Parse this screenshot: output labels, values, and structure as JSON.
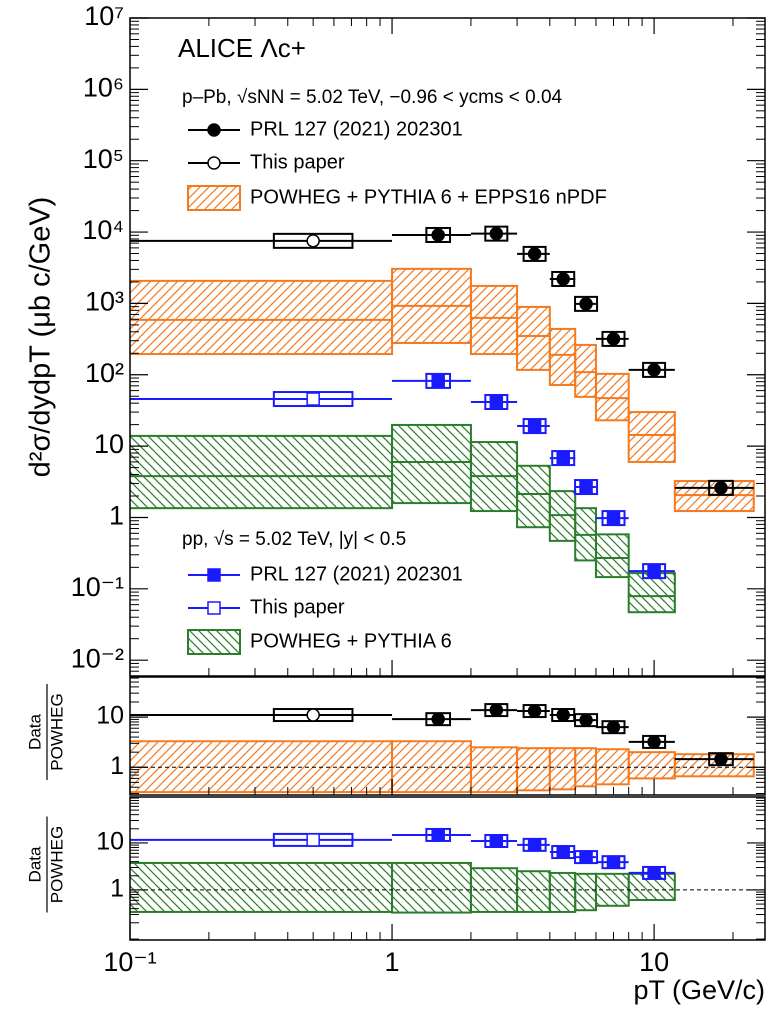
{
  "chart_data": [
    {
      "type": "errorbar",
      "log_x": true,
      "log_y": true,
      "title": "ALICE Λc+",
      "y_label": "d²σ/dydpT (μb c/GeV)",
      "xlim": [
        0.1,
        26.5
      ],
      "ylim": [
        0.006,
        10000000
      ],
      "yticks": [
        {
          "value": 0.01,
          "label": "10⁻²"
        },
        {
          "value": 0.1,
          "label": "10⁻¹"
        },
        1,
        10,
        {
          "value": 100,
          "label": "10²"
        },
        {
          "value": 1000,
          "label": "10³"
        },
        {
          "value": 10000,
          "label": "10⁴"
        },
        {
          "value": 100000,
          "label": "10⁵"
        },
        {
          "value": 1000000,
          "label": "10⁶"
        },
        {
          "value": 10000000,
          "label": "10⁷"
        }
      ],
      "groups": [
        {
          "label": "p–Pb, √sNN = 5.02 TeV, −0.96 < ycms < 0.04",
          "series": [
            {
              "name": "PRL 127 (2021) 202301",
              "color": "#000000",
              "marker": "circle",
              "filled": true,
              "bins": [
                1,
                2,
                3,
                4,
                5,
                6,
                8,
                12,
                24
              ],
              "x": [
                1.5,
                2.5,
                3.5,
                4.5,
                5.5,
                7,
                10,
                18
              ],
              "values": [
                9100,
                9500,
                4940,
                2200,
                985,
                318,
                117,
                2.6
              ]
            },
            {
              "name": "This paper",
              "color": "#000000",
              "marker": "circle",
              "filled": false,
              "bins": [
                0,
                1
              ],
              "x": [
                0.5
              ],
              "values": [
                7530
              ]
            }
          ],
          "band": {
            "name": "POWHEG + PYTHIA 6 + EPPS16 nPDF",
            "color": "#f47a20",
            "hatch": "/",
            "bins": [
              0,
              1,
              2,
              3,
              4,
              5,
              6,
              8,
              12,
              24
            ],
            "low": [
              195,
              279,
              195,
              117,
              72,
              49,
              23,
              6,
              1.23
            ],
            "mid": [
              587,
              923,
              627,
              350,
              190,
              109,
              47,
              14.3,
              2.06
            ],
            "high": [
              2070,
              3050,
              1760,
              893,
              439,
              262,
              103,
              30,
              3.24
            ]
          }
        },
        {
          "label": "pp, √s = 5.02 TeV, |y| < 0.5",
          "series": [
            {
              "name": "PRL 127 (2021) 202301",
              "color": "#1a1aff",
              "marker": "square",
              "filled": true,
              "bins": [
                1,
                2,
                3,
                4,
                5,
                6,
                8,
                12
              ],
              "x": [
                1.5,
                2.5,
                3.5,
                4.5,
                5.5,
                7,
                10
              ],
              "values": [
                82,
                41.5,
                19.1,
                6.8,
                2.67,
                0.98,
                0.177
              ]
            },
            {
              "name": "This paper",
              "color": "#1a1aff",
              "marker": "square",
              "filled": false,
              "bins": [
                0,
                1
              ],
              "x": [
                0.5
              ],
              "values": [
                45.7
              ]
            }
          ],
          "band": {
            "name": "POWHEG + PYTHIA 6",
            "color": "#2a7d2a",
            "hatch": "\\",
            "bins": [
              0,
              1,
              2,
              3,
              4,
              5,
              6,
              8,
              12
            ],
            "low": [
              1.35,
              1.59,
              1.23,
              0.73,
              0.47,
              0.25,
              0.146,
              0.047
            ],
            "mid": [
              3.8,
              6.0,
              3.8,
              2.13,
              1.08,
              0.57,
              0.27,
              0.079
            ],
            "high": [
              13.9,
              19.8,
              11.4,
              5.3,
              2.34,
              1.35,
              0.58,
              0.166
            ]
          }
        }
      ]
    },
    {
      "type": "errorbar",
      "log_x": true,
      "log_y": true,
      "y_label": [
        "Data",
        "POWHEG"
      ],
      "xlim": [
        0.1,
        26.5
      ],
      "ylim": [
        0.28,
        63
      ],
      "yticks": [
        1,
        10
      ],
      "reference_line": 1,
      "series": [
        {
          "color": "#000000",
          "marker": "circle",
          "filled": true,
          "bins": [
            1,
            2,
            3,
            4,
            5,
            6,
            8,
            12,
            24
          ],
          "x": [
            1.5,
            2.5,
            3.5,
            4.5,
            5.5,
            7,
            10,
            18
          ],
          "values": [
            9.1,
            13.8,
            13.2,
            11,
            8.7,
            6.3,
            3.2,
            1.45
          ]
        },
        {
          "color": "#000000",
          "marker": "circle",
          "filled": false,
          "bins": [
            0,
            1
          ],
          "x": [
            0.5
          ],
          "values": [
            11
          ]
        }
      ],
      "band": {
        "color": "#f47a20",
        "hatch": "/",
        "bins": [
          0,
          1,
          2,
          3,
          4,
          5,
          6,
          8,
          12,
          24
        ],
        "low": [
          0.32,
          0.32,
          0.32,
          0.347,
          0.363,
          0.417,
          0.457,
          0.6,
          0.66
        ],
        "high": [
          3.3,
          3.3,
          2.5,
          2.4,
          2.4,
          2.4,
          2.29,
          2.0,
          1.82
        ]
      }
    },
    {
      "type": "errorbar",
      "log_x": true,
      "log_y": true,
      "y_label": [
        "Data",
        "POWHEG"
      ],
      "x_label": "pT (GeV/c)",
      "xlim": [
        0.1,
        26.5
      ],
      "ylim": [
        0.086,
        95
      ],
      "yticks": [
        1,
        10
      ],
      "reference_line": 1,
      "xticks": [
        {
          "value": 0.1,
          "label": "10⁻¹"
        },
        1,
        10
      ],
      "series": [
        {
          "color": "#1a1aff",
          "marker": "square",
          "filled": true,
          "bins": [
            1,
            2,
            3,
            4,
            5,
            6,
            8,
            12
          ],
          "x": [
            1.5,
            2.5,
            3.5,
            4.5,
            5.5,
            7,
            10
          ],
          "values": [
            14.8,
            11.0,
            9.1,
            6.4,
            5.0,
            3.9,
            2.3
          ]
        },
        {
          "color": "#1a1aff",
          "marker": "square",
          "filled": false,
          "bins": [
            0,
            1
          ],
          "x": [
            0.5
          ],
          "values": [
            11.6
          ]
        }
      ],
      "band": {
        "color": "#2a7d2a",
        "hatch": "\\",
        "bins": [
          0,
          1,
          2,
          3,
          4,
          5,
          6,
          8,
          12
        ],
        "low": [
          0.34,
          0.33,
          0.34,
          0.34,
          0.34,
          0.37,
          0.46,
          0.61
        ],
        "high": [
          3.75,
          3.75,
          2.9,
          2.5,
          2.3,
          2.2,
          2.2,
          2.2
        ]
      }
    }
  ]
}
